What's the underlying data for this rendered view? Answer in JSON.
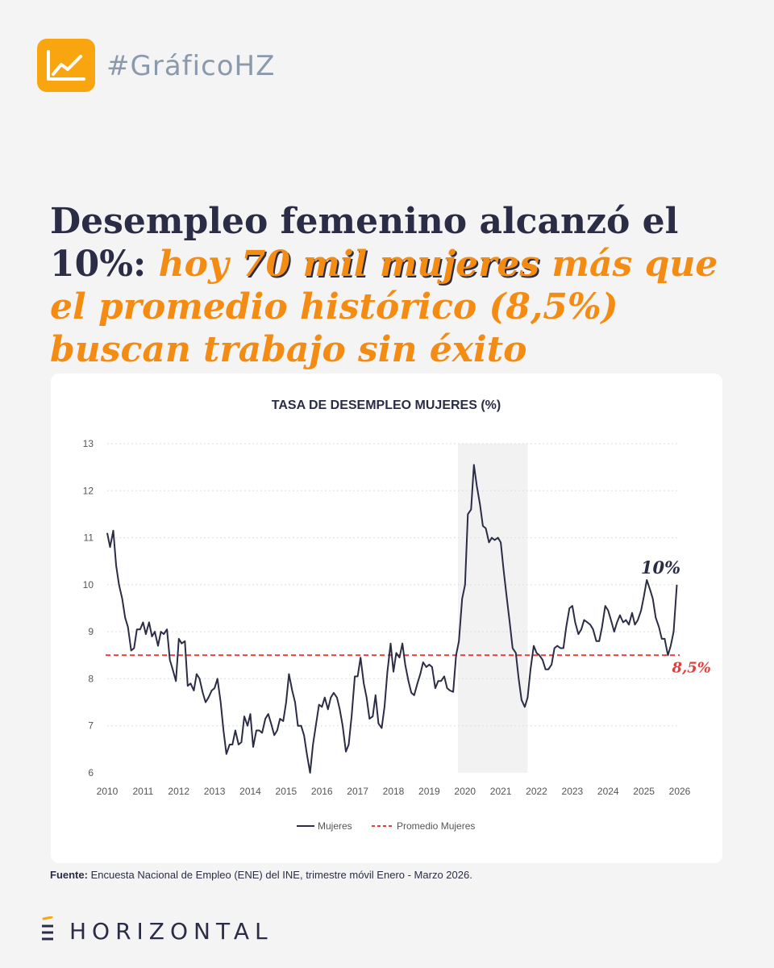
{
  "tag": {
    "icon": "line-chart-icon",
    "text": "#GráficoHZ"
  },
  "headline": {
    "part1": "Desempleo femenino alcanzó el 10%: ",
    "part2": "hoy ",
    "part3": "70 mil mujeres",
    "part4": " más que el promedio histórico (8,5%) buscan trabajo sin éxito"
  },
  "chart_data": {
    "type": "line",
    "title": "TASA DE DESEMPLEO MUJERES (%)",
    "xlim": [
      2010,
      2026
    ],
    "ylim": [
      6,
      13
    ],
    "x_ticks": [
      "2010",
      "2011",
      "2012",
      "2013",
      "2014",
      "2015",
      "2016",
      "2017",
      "2018",
      "2019",
      "2020",
      "2021",
      "2022",
      "2023",
      "2024",
      "2025",
      "2026"
    ],
    "y_ticks": [
      "6",
      "7",
      "8",
      "9",
      "10",
      "11",
      "12",
      "13"
    ],
    "shaded_period": [
      2019.8,
      2021.75
    ],
    "series": [
      {
        "name": "Mujeres",
        "color": "#2a2d45",
        "x": [
          2010.0,
          2010.08,
          2010.17,
          2010.25,
          2010.33,
          2010.42,
          2010.5,
          2010.58,
          2010.67,
          2010.75,
          2010.83,
          2010.92,
          2011.0,
          2011.08,
          2011.17,
          2011.25,
          2011.33,
          2011.42,
          2011.5,
          2011.58,
          2011.67,
          2011.75,
          2011.83,
          2011.92,
          2012.0,
          2012.08,
          2012.17,
          2012.25,
          2012.33,
          2012.42,
          2012.5,
          2012.58,
          2012.67,
          2012.75,
          2012.83,
          2012.92,
          2013.0,
          2013.08,
          2013.17,
          2013.25,
          2013.33,
          2013.42,
          2013.5,
          2013.58,
          2013.67,
          2013.75,
          2013.83,
          2013.92,
          2014.0,
          2014.08,
          2014.17,
          2014.25,
          2014.33,
          2014.42,
          2014.5,
          2014.58,
          2014.67,
          2014.75,
          2014.83,
          2014.92,
          2015.0,
          2015.08,
          2015.17,
          2015.25,
          2015.33,
          2015.42,
          2015.5,
          2015.58,
          2015.67,
          2015.75,
          2015.83,
          2015.92,
          2016.0,
          2016.08,
          2016.17,
          2016.25,
          2016.33,
          2016.42,
          2016.5,
          2016.58,
          2016.67,
          2016.75,
          2016.83,
          2016.92,
          2017.0,
          2017.08,
          2017.17,
          2017.25,
          2017.33,
          2017.42,
          2017.5,
          2017.58,
          2017.67,
          2017.75,
          2017.83,
          2017.92,
          2018.0,
          2018.08,
          2018.17,
          2018.25,
          2018.33,
          2018.42,
          2018.5,
          2018.58,
          2018.67,
          2018.75,
          2018.83,
          2018.92,
          2019.0,
          2019.08,
          2019.17,
          2019.25,
          2019.33,
          2019.42,
          2019.5,
          2019.58,
          2019.67,
          2019.75,
          2019.83,
          2019.92,
          2020.0,
          2020.08,
          2020.17,
          2020.25,
          2020.33,
          2020.42,
          2020.5,
          2020.58,
          2020.67,
          2020.75,
          2020.83,
          2020.92,
          2021.0,
          2021.08,
          2021.17,
          2021.25,
          2021.33,
          2021.42,
          2021.5,
          2021.58,
          2021.67,
          2021.75,
          2021.83,
          2021.92,
          2022.0,
          2022.08,
          2022.17,
          2022.25,
          2022.33,
          2022.42,
          2022.5,
          2022.58,
          2022.67,
          2022.75,
          2022.83,
          2022.92,
          2023.0,
          2023.08,
          2023.17,
          2023.25,
          2023.33,
          2023.42,
          2023.5,
          2023.58,
          2023.67,
          2023.75,
          2023.83,
          2023.92,
          2024.0,
          2024.08,
          2024.17,
          2024.25,
          2024.33,
          2024.42,
          2024.5,
          2024.58,
          2024.67,
          2024.75,
          2024.83,
          2024.92,
          2025.0,
          2025.08,
          2025.17,
          2025.25,
          2025.33,
          2025.42,
          2025.5,
          2025.58,
          2025.67,
          2025.75,
          2025.83,
          2025.92
        ],
        "y": [
          11.1,
          10.8,
          11.15,
          10.4,
          10.0,
          9.7,
          9.3,
          9.1,
          8.6,
          8.65,
          9.05,
          9.05,
          9.2,
          8.95,
          9.2,
          8.9,
          9.0,
          8.7,
          9.0,
          8.95,
          9.05,
          8.4,
          8.2,
          7.95,
          8.85,
          8.75,
          8.8,
          7.85,
          7.9,
          7.75,
          8.1,
          8.0,
          7.7,
          7.5,
          7.6,
          7.75,
          7.8,
          8.0,
          7.5,
          6.9,
          6.4,
          6.6,
          6.6,
          6.9,
          6.6,
          6.65,
          7.2,
          7.0,
          7.25,
          6.55,
          6.9,
          6.9,
          6.85,
          7.15,
          7.25,
          7.05,
          6.8,
          6.9,
          7.15,
          7.1,
          7.5,
          8.1,
          7.75,
          7.5,
          7.0,
          7.0,
          6.8,
          6.4,
          6.0,
          6.6,
          7.0,
          7.45,
          7.4,
          7.6,
          7.35,
          7.6,
          7.7,
          7.6,
          7.35,
          7.0,
          6.45,
          6.6,
          7.2,
          8.05,
          8.05,
          8.45,
          7.9,
          7.6,
          7.15,
          7.2,
          7.65,
          7.05,
          6.95,
          7.4,
          8.15,
          8.75,
          8.15,
          8.55,
          8.45,
          8.75,
          8.3,
          7.95,
          7.7,
          7.65,
          7.9,
          8.1,
          8.35,
          8.25,
          8.3,
          8.25,
          7.8,
          7.95,
          7.95,
          8.05,
          7.8,
          7.75,
          7.72,
          8.5,
          8.8,
          9.7,
          10.0,
          11.5,
          11.6,
          12.55,
          12.1,
          11.7,
          11.25,
          11.2,
          10.9,
          11.0,
          10.95,
          11.0,
          10.9,
          10.3,
          9.7,
          9.2,
          8.65,
          8.55,
          8.0,
          7.55,
          7.4,
          7.6,
          8.2,
          8.7,
          8.55,
          8.5,
          8.4,
          8.2,
          8.2,
          8.3,
          8.65,
          8.7,
          8.65,
          8.65,
          9.1,
          9.5,
          9.55,
          9.2,
          8.95,
          9.05,
          9.25,
          9.2,
          9.15,
          9.05,
          8.8,
          8.8,
          9.1,
          9.55,
          9.45,
          9.25,
          9.0,
          9.2,
          9.35,
          9.2,
          9.25,
          9.15,
          9.4,
          9.15,
          9.25,
          9.45,
          9.75,
          10.1,
          9.9,
          9.7,
          9.3,
          9.1,
          8.85,
          8.85,
          8.5,
          8.7,
          9.0,
          10.0
        ]
      },
      {
        "name": "Promedio Mujeres",
        "color": "#e0403b",
        "dashed": true,
        "constant": 8.5
      }
    ],
    "annotations": [
      {
        "text": "10%",
        "color": "#2a2d45"
      },
      {
        "text": "8,5%",
        "color": "#e0403b"
      }
    ],
    "legend": {
      "position": "bottom",
      "items": [
        "Mujeres",
        "Promedio Mujeres"
      ]
    }
  },
  "source": {
    "label": "Fuente:",
    "text": " Encuesta Nacional de Empleo (ENE) del INE, trimestre móvil Enero - Marzo 2026."
  },
  "brand": {
    "icon": "horizontal-logo-icon",
    "text": "HORIZONTAL"
  },
  "colors": {
    "accent": "#f48c14",
    "navy": "#2a2d45",
    "red": "#e0403b",
    "tag": "#f8a50f"
  }
}
